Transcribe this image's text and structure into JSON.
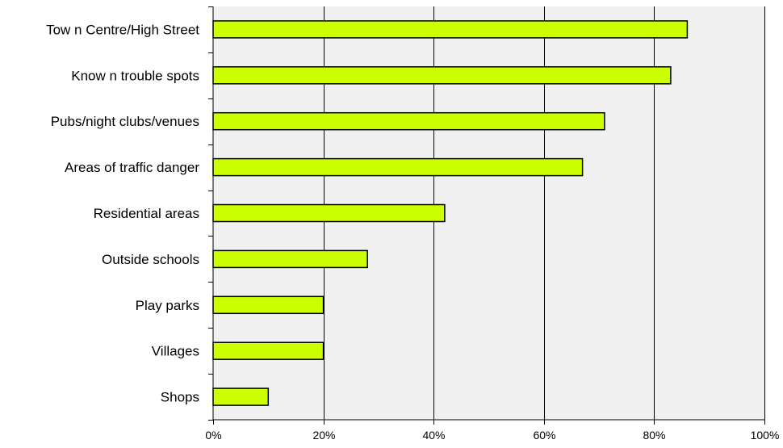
{
  "chart_data": {
    "type": "bar",
    "orientation": "horizontal",
    "categories": [
      "Tow n Centre/High Street",
      "Know n trouble spots",
      "Pubs/night clubs/venues",
      "Areas of traffic danger",
      "Residential areas",
      "Outside schools",
      "Play parks",
      "Villages",
      "Shops"
    ],
    "values": [
      86,
      83,
      71,
      67,
      42,
      28,
      20,
      20,
      10
    ],
    "xlim": [
      0,
      100
    ],
    "x_ticks": [
      "0%",
      "20%",
      "40%",
      "60%",
      "80%",
      "100%"
    ],
    "title": "",
    "xlabel": "",
    "ylabel": "",
    "grid": "vertical",
    "legend": "none",
    "colors": {
      "bar_fill": "#ccff00",
      "bar_stroke": "#000000",
      "plot_background": "#f0f0f0",
      "gridline": "#000000"
    }
  }
}
